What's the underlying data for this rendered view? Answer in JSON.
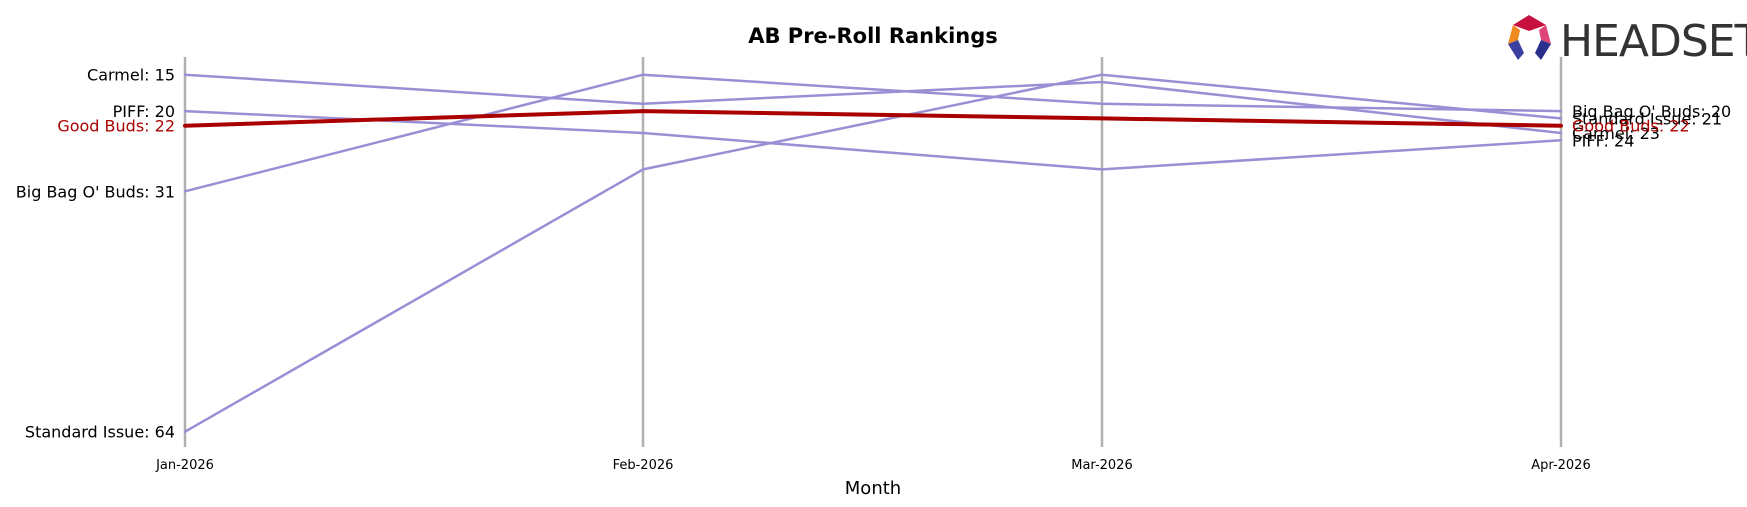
{
  "logo": {
    "text": "HEADSET"
  },
  "chart_data": {
    "type": "line",
    "title": "AB Pre-Roll Rankings",
    "xlabel": "Month",
    "ylabel": "",
    "x": [
      "Jan-2026",
      "Feb-2026",
      "Mar-2026",
      "Apr-2026"
    ],
    "y_inverted": true,
    "grid": {
      "vertical": true,
      "horizontal": false
    },
    "highlight_color": "#aa0000",
    "series_color": "#9a8fd4",
    "gridline_color": "#b0b0b0",
    "series": [
      {
        "name": "Carmel",
        "values": [
          15,
          19,
          16,
          23
        ],
        "highlight": false,
        "start_label": "Carmel: 15",
        "end_label": "Carmel: 23"
      },
      {
        "name": "PIFF",
        "values": [
          20,
          23,
          28,
          24
        ],
        "highlight": false,
        "start_label": "PIFF: 20",
        "end_label": "PIFF: 24"
      },
      {
        "name": "Big Bag O' Buds",
        "values": [
          31,
          15,
          19,
          20
        ],
        "highlight": false,
        "start_label": "Big Bag O' Buds: 31",
        "end_label": "Big Bag O' Buds: 20"
      },
      {
        "name": "Standard Issue",
        "values": [
          64,
          28,
          15,
          21
        ],
        "highlight": false,
        "start_label": "Standard Issue: 64",
        "end_label": "Standard Issue: 21"
      },
      {
        "name": "Good Buds",
        "values": [
          22,
          20,
          21,
          22
        ],
        "highlight": true,
        "start_label": "Good Buds: 22",
        "end_label": "Good Buds: 22"
      }
    ]
  }
}
